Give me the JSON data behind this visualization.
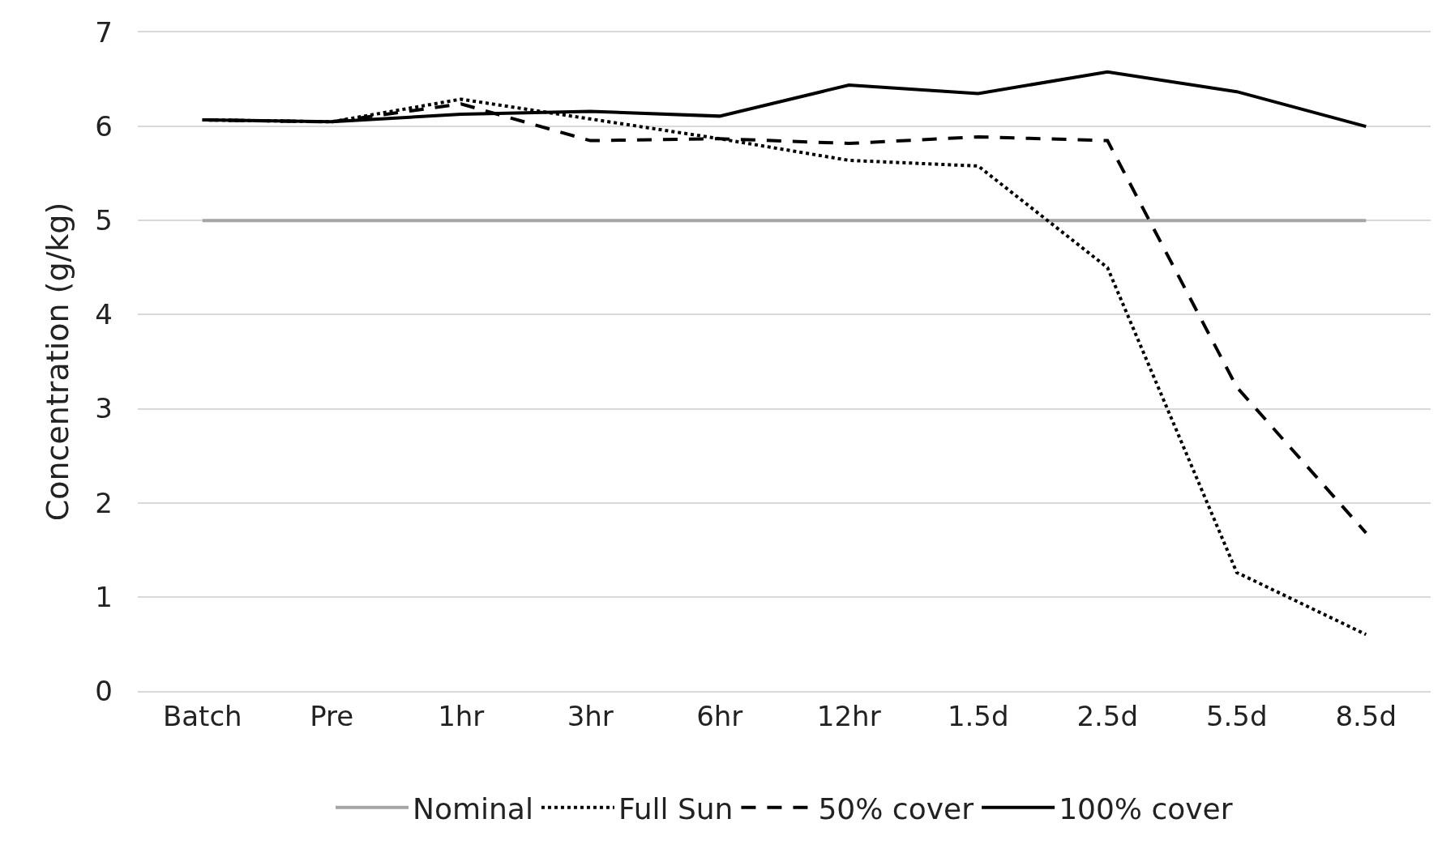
{
  "chart_data": {
    "type": "line",
    "ylabel": "Concentration (g/kg)",
    "categories": [
      "Batch",
      "Pre",
      "1hr",
      "3hr",
      "6hr",
      "12hr",
      "1.5d",
      "2.5d",
      "5.5d",
      "8.5d"
    ],
    "ylim": [
      0,
      7
    ],
    "yticks": [
      0,
      1,
      2,
      3,
      4,
      5,
      6,
      7
    ],
    "grid": "y",
    "legend": "bottom",
    "marker": "none",
    "series": [
      {
        "name": "Nominal",
        "color": "#a5a5a5",
        "line_style": "solid",
        "values": [
          5,
          5,
          5,
          5,
          5,
          5,
          5,
          5,
          5,
          5
        ]
      },
      {
        "name": "Full Sun",
        "color": "#000000",
        "line_style": "dotted",
        "values": [
          6.07,
          6.05,
          6.29,
          6.08,
          5.87,
          5.64,
          5.58,
          4.5,
          1.26,
          0.6
        ]
      },
      {
        "name": "50% cover",
        "color": "#000000",
        "line_style": "dashed",
        "values": [
          6.07,
          6.05,
          6.24,
          5.85,
          5.87,
          5.82,
          5.89,
          5.85,
          3.23,
          1.68
        ]
      },
      {
        "name": "100% cover",
        "color": "#000000",
        "line_style": "solid",
        "values": [
          6.07,
          6.05,
          6.13,
          6.16,
          6.11,
          6.44,
          6.35,
          6.58,
          6.37,
          6.0
        ]
      }
    ]
  }
}
